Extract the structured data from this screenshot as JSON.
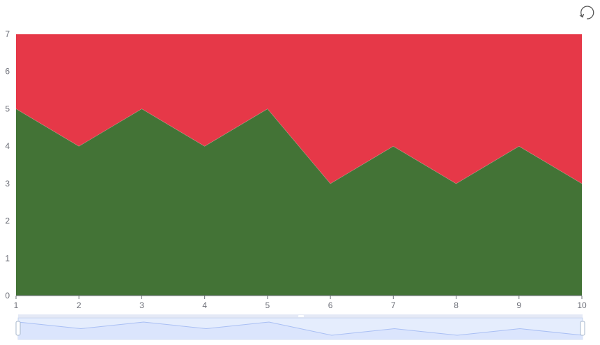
{
  "toolbox": {
    "restore_icon": "restore-icon"
  },
  "chart_data": {
    "type": "area",
    "stacked": true,
    "x": [
      1,
      2,
      3,
      4,
      5,
      6,
      7,
      8,
      9,
      10
    ],
    "xlim": [
      1,
      10
    ],
    "ylim": [
      0,
      7
    ],
    "y_ticks": [
      0,
      1,
      2,
      3,
      4,
      5,
      6,
      7
    ],
    "series": [
      {
        "values": [
          5,
          4,
          5,
          4,
          5,
          3,
          4,
          3,
          4,
          3
        ],
        "color": "#437336"
      },
      {
        "values": [
          2,
          3,
          2,
          3,
          2,
          4,
          3,
          4,
          3,
          4
        ],
        "color": "#e63848"
      }
    ],
    "grid": false,
    "data_zoom": {
      "start": 0,
      "end": 100,
      "fill": "#dbe5fd",
      "line": "#a9bff4"
    }
  }
}
